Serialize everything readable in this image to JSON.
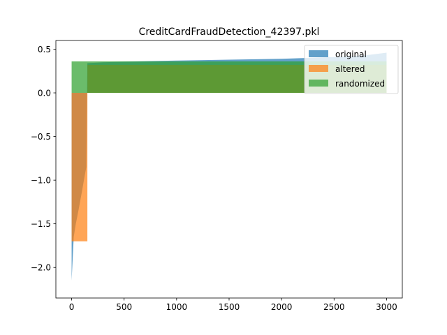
{
  "chart_data": {
    "type": "area",
    "title": "CreditCardFraudDetection_42397.pkl",
    "xlabel": "",
    "ylabel": "",
    "xlim": [
      -150,
      3150
    ],
    "ylim": [
      -2.35,
      0.6
    ],
    "xticks": [
      0,
      500,
      1000,
      1500,
      2000,
      2500,
      3000
    ],
    "xtick_labels": [
      "0",
      "500",
      "1000",
      "1500",
      "2000",
      "2500",
      "3000"
    ],
    "yticks": [
      -2.0,
      -1.5,
      -1.0,
      -0.5,
      0.0,
      0.5
    ],
    "ytick_labels": [
      "−2.0",
      "−1.5",
      "−1.0",
      "−0.5",
      "0.0",
      "0.5"
    ],
    "grid": false,
    "legend_position": "top-right",
    "series": [
      {
        "name": "original",
        "color": "#1f77b4",
        "opacity": 0.7,
        "x": [
          0,
          20,
          40,
          60,
          80,
          100,
          120,
          140,
          150,
          300,
          600,
          1000,
          1500,
          2000,
          2500,
          2800,
          3000
        ],
        "y": [
          -2.15,
          -1.65,
          -1.5,
          -1.38,
          -1.25,
          -1.12,
          -0.98,
          -0.85,
          0.34,
          0.35,
          0.36,
          0.37,
          0.38,
          0.39,
          0.41,
          0.43,
          0.46
        ]
      },
      {
        "name": "altered",
        "color": "#ff7f0e",
        "opacity": 0.7,
        "x": [
          0,
          150,
          150.5,
          3000
        ],
        "y": [
          -1.7,
          -1.7,
          0.32,
          0.32
        ]
      },
      {
        "name": "randomized",
        "color": "#2ca02c",
        "opacity": 0.7,
        "x": [
          0,
          3000
        ],
        "y": [
          0.36,
          0.36
        ]
      }
    ]
  }
}
